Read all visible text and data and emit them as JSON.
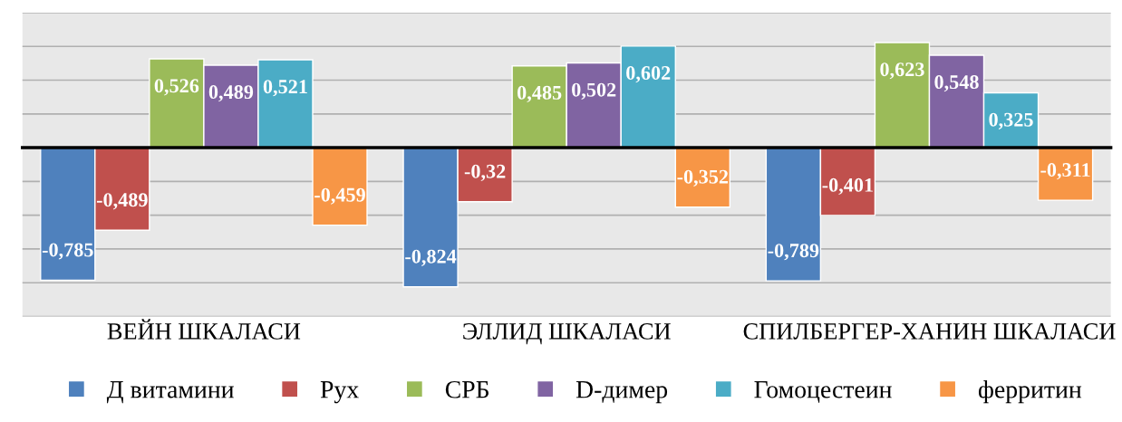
{
  "chart_data": {
    "type": "bar",
    "categories": [
      "ВЕЙН ШКАЛАСИ",
      "ЭЛЛИД ШКАЛАСИ",
      "СПИЛБЕРГЕР-ХАНИН ШКАЛАСИ"
    ],
    "series": [
      {
        "name": "Д витамини",
        "color": "#4f81bd",
        "values": [
          -0.785,
          -0.824,
          -0.789
        ],
        "value_labels": [
          "-0,785",
          "-0,824",
          "-0,789"
        ]
      },
      {
        "name": "Рух",
        "color": "#c0504d",
        "values": [
          -0.489,
          -0.32,
          -0.401
        ],
        "value_labels": [
          "-0,489",
          "-0,32",
          "-0,401"
        ]
      },
      {
        "name": "СРБ",
        "color": "#9bbb59",
        "values": [
          0.526,
          0.485,
          0.623
        ],
        "value_labels": [
          "0,526",
          "0,485",
          "0,623"
        ]
      },
      {
        "name": "D-димер",
        "color": "#8064a2",
        "values": [
          0.489,
          0.502,
          0.548
        ],
        "value_labels": [
          "0,489",
          "0,502",
          "0,548"
        ]
      },
      {
        "name": "Гомоцестеин",
        "color": "#4bacc6",
        "values": [
          0.521,
          0.602,
          0.325
        ],
        "value_labels": [
          "0,521",
          "0,602",
          "0,325"
        ]
      },
      {
        "name": "ферритин",
        "color": "#f79646",
        "values": [
          -0.459,
          -0.352,
          -0.311
        ],
        "value_labels": [
          "-0,459",
          "-0,352",
          "-0,311"
        ]
      }
    ],
    "ylim": [
      -1.0,
      0.8
    ],
    "yticks": [
      {
        "value": -1.0,
        "label": null
      },
      {
        "value": -0.8,
        "label": null
      },
      {
        "value": -0.6,
        "label": null
      },
      {
        "value": -0.4,
        "label": null
      },
      {
        "value": -0.2,
        "label": null
      },
      {
        "value": 0,
        "label": null
      },
      {
        "value": 0.2,
        "label": null
      },
      {
        "value": 0.4,
        "label": null
      },
      {
        "value": 0.6,
        "label": null
      },
      {
        "value": 0.8,
        "label": null
      }
    ],
    "tick_labels": "x",
    "grid": "y",
    "legend": "bottom",
    "marker": "square"
  }
}
